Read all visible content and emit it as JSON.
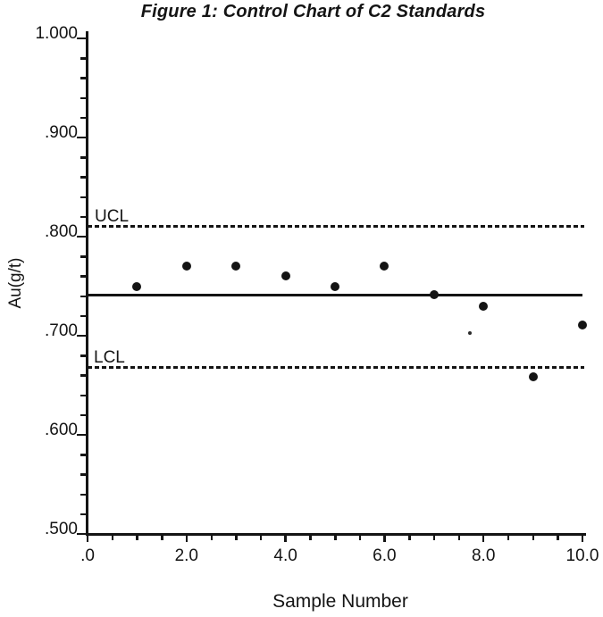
{
  "page": {
    "background_color": "#ffffff",
    "ink_color": "#141414"
  },
  "chart_data": {
    "type": "scatter",
    "title": "Figure 1: Control Chart of C2 Standards",
    "xlabel": "Sample Number",
    "ylabel": "Au(g/t)",
    "x": [
      1,
      2,
      3,
      4,
      5,
      6,
      7,
      8,
      9,
      10
    ],
    "values": [
      0.75,
      0.77,
      0.77,
      0.76,
      0.75,
      0.77,
      0.741,
      0.73,
      0.659,
      0.711
    ],
    "center_line": 0.741,
    "ucl": 0.81,
    "lcl": 0.668,
    "ucl_label": "UCL",
    "lcl_label": "LCL",
    "xlim": [
      0,
      10
    ],
    "ylim": [
      0.5,
      1.0
    ],
    "x_major_ticks": [
      0,
      2,
      4,
      6,
      8,
      10
    ],
    "x_tick_labels": [
      ".0",
      "2.0",
      "4.0",
      "6.0",
      "8.0",
      "10.0"
    ],
    "x_minor_step": 0.5,
    "y_major_ticks": [
      1.0,
      0.9,
      0.8,
      0.7,
      0.6,
      0.5
    ],
    "y_tick_labels": [
      "1.000",
      ".900",
      ".800",
      ".700",
      ".600",
      ".500"
    ],
    "y_minor_step": 0.02,
    "grid": false,
    "legend": "none",
    "marker": "filled-circle",
    "marker_color": "#141414",
    "line_styles": {
      "ucl": "dashed",
      "lcl": "dashed",
      "center": "solid"
    }
  }
}
